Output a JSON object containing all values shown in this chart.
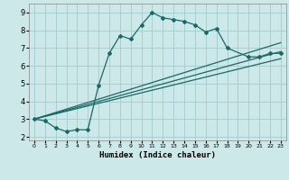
{
  "xlabel": "Humidex (Indice chaleur)",
  "bg_color": "#cce8e8",
  "grid_color": "#a8d0d0",
  "line_color": "#1a6868",
  "xlim": [
    -0.5,
    23.5
  ],
  "ylim": [
    1.8,
    9.5
  ],
  "xticks": [
    0,
    1,
    2,
    3,
    4,
    5,
    6,
    7,
    8,
    9,
    10,
    11,
    12,
    13,
    14,
    15,
    16,
    17,
    18,
    19,
    20,
    21,
    22,
    23
  ],
  "yticks": [
    2,
    3,
    4,
    5,
    6,
    7,
    8,
    9
  ],
  "series1_x": [
    0,
    1,
    2,
    3,
    4,
    5,
    6,
    7,
    8,
    9,
    10,
    11,
    12,
    13,
    14,
    15,
    16,
    17,
    18,
    20,
    21,
    22,
    23
  ],
  "series1_y": [
    3.0,
    2.9,
    2.5,
    2.3,
    2.4,
    2.4,
    4.9,
    6.7,
    7.7,
    7.5,
    8.3,
    9.0,
    8.7,
    8.6,
    8.5,
    8.3,
    7.9,
    8.1,
    7.0,
    6.5,
    6.5,
    6.7,
    6.7
  ],
  "series2_x": [
    0,
    23
  ],
  "series2_y": [
    3.0,
    7.3
  ],
  "series3_x": [
    0,
    23
  ],
  "series3_y": [
    3.0,
    6.8
  ],
  "series4_x": [
    0,
    23
  ],
  "series4_y": [
    3.0,
    6.4
  ]
}
